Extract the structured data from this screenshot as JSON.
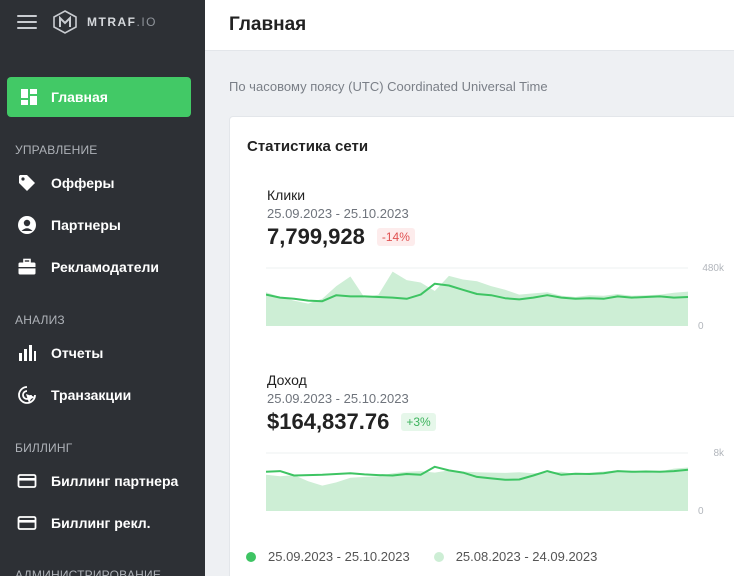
{
  "app": {
    "logo_main": "MTRAF",
    "logo_suffix": ".IO"
  },
  "sidebar": {
    "active": {
      "label": "Главная",
      "icon": "dashboard-icon"
    },
    "sections": [
      {
        "title": "УПРАВЛЕНИЕ",
        "items": [
          {
            "label": "Офферы",
            "icon": "tag-icon"
          },
          {
            "label": "Партнеры",
            "icon": "user-circle-icon"
          },
          {
            "label": "Рекламодатели",
            "icon": "briefcase-icon"
          }
        ]
      },
      {
        "title": "АНАЛИЗ",
        "items": [
          {
            "label": "Отчеты",
            "icon": "bar-chart-icon"
          },
          {
            "label": "Транзакции",
            "icon": "cursor-click-icon"
          }
        ]
      },
      {
        "title": "БИЛЛИНГ",
        "items": [
          {
            "label": "Биллинг партнера",
            "icon": "credit-card-icon"
          },
          {
            "label": "Биллинг рекл.",
            "icon": "credit-card-icon"
          }
        ]
      },
      {
        "title": "АДМИНИСТРИРОВАНИЕ",
        "items": []
      }
    ]
  },
  "header": {
    "title": "Главная"
  },
  "timezone_text": "По часовому поясу (UTC) Coordinated Universal Time",
  "stats": {
    "title": "Статистика сети",
    "clicks": {
      "label": "Клики",
      "range": "25.09.2023 - 25.10.2023",
      "value": "7,799,928",
      "delta": "-14%"
    },
    "revenue": {
      "label": "Доход",
      "range": "25.09.2023 - 25.10.2023",
      "value": "$164,837.76",
      "delta": "+3%"
    },
    "legend": {
      "current": "25.09.2023 - 25.10.2023",
      "previous": "25.08.2023 - 24.09.2023"
    }
  },
  "colors": {
    "accent": "#42c966",
    "current_line": "#3ec463",
    "previous_area": "#cdeed5",
    "sidebar_bg": "#2d3035"
  },
  "chart_data": [
    {
      "type": "line",
      "name": "clicks",
      "y_ticks": [
        "480k",
        "0"
      ],
      "ylim": [
        0,
        480000
      ],
      "series": [
        {
          "name": "25.09.2023 - 25.10.2023",
          "values": [
            260000,
            235000,
            225000,
            210000,
            205000,
            255000,
            245000,
            245000,
            240000,
            235000,
            225000,
            260000,
            350000,
            335000,
            300000,
            265000,
            255000,
            230000,
            220000,
            235000,
            255000,
            235000,
            225000,
            230000,
            225000,
            245000,
            235000,
            240000,
            245000,
            235000,
            240000
          ]
        },
        {
          "name": "25.08.2023 - 24.09.2023",
          "values": [
            280000,
            240000,
            210000,
            185000,
            225000,
            330000,
            410000,
            235000,
            260000,
            450000,
            380000,
            360000,
            290000,
            415000,
            385000,
            370000,
            330000,
            300000,
            260000,
            270000,
            280000,
            250000,
            240000,
            255000,
            250000,
            265000,
            250000,
            255000,
            260000,
            275000,
            285000
          ]
        }
      ]
    },
    {
      "type": "line",
      "name": "revenue",
      "y_ticks": [
        "8k",
        "0"
      ],
      "ylim": [
        0,
        8000
      ],
      "series": [
        {
          "name": "25.09.2023 - 25.10.2023",
          "values": [
            5400,
            5500,
            4900,
            4950,
            5000,
            5100,
            5200,
            5050,
            4950,
            4900,
            5100,
            5000,
            6100,
            5600,
            5300,
            4700,
            4500,
            4300,
            4350,
            4900,
            5500,
            5000,
            5150,
            5100,
            5200,
            5500,
            5400,
            5450,
            5400,
            5500,
            5700
          ]
        },
        {
          "name": "25.08.2023 - 24.09.2023",
          "values": [
            5000,
            4800,
            4950,
            4100,
            3500,
            3950,
            4600,
            4700,
            4800,
            5200,
            5400,
            5500,
            5300,
            5600,
            5450,
            5350,
            5300,
            5250,
            5350,
            5200,
            5300,
            5400,
            5100,
            5300,
            5450,
            5600,
            5550,
            5500,
            5450,
            5850,
            6000
          ]
        }
      ]
    }
  ]
}
